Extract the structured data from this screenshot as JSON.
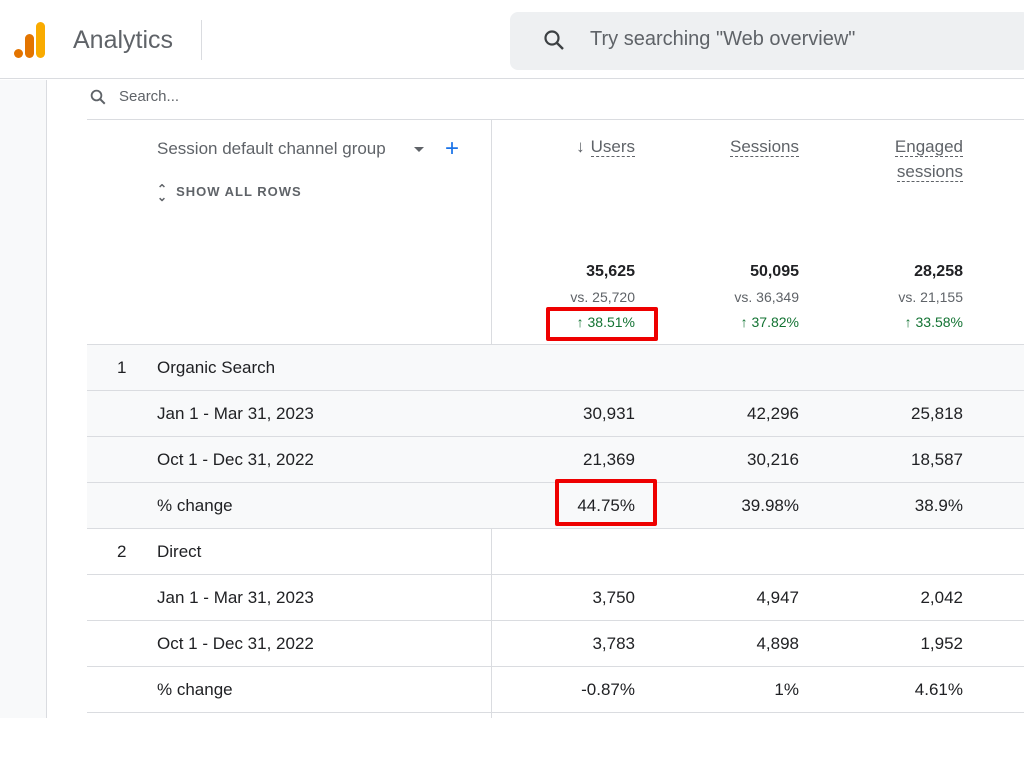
{
  "header": {
    "app_title": "Analytics",
    "search_placeholder": "Try searching \"Web overview\""
  },
  "table": {
    "search_placeholder": "Search...",
    "dimension": "Session default channel group",
    "show_all_rows": "SHOW ALL ROWS",
    "columns": [
      {
        "label": "Users",
        "sort_indicator": "↓",
        "total": "35,625",
        "vs": "vs. 25,720",
        "change": "38.51%"
      },
      {
        "label": "Sessions",
        "total": "50,095",
        "vs": "vs. 36,349",
        "change": "37.82%"
      },
      {
        "label": "Engaged sessions",
        "total": "28,258",
        "vs": "vs. 21,155",
        "change": "33.58%"
      }
    ],
    "rows": [
      {
        "index": "1",
        "label": "Organic Search",
        "values": [
          "",
          "",
          ""
        ],
        "shaded": true
      },
      {
        "index": "",
        "label": "Jan 1 - Mar 31, 2023",
        "values": [
          "30,931",
          "42,296",
          "25,818"
        ],
        "shaded": true
      },
      {
        "index": "",
        "label": "Oct 1 - Dec 31, 2022",
        "values": [
          "21,369",
          "30,216",
          "18,587"
        ],
        "shaded": true
      },
      {
        "index": "",
        "label": "% change",
        "values": [
          "44.75%",
          "39.98%",
          "38.9%"
        ],
        "shaded": true
      },
      {
        "index": "2",
        "label": "Direct",
        "values": [
          "",
          "",
          ""
        ],
        "shaded": false
      },
      {
        "index": "",
        "label": "Jan 1 - Mar 31, 2023",
        "values": [
          "3,750",
          "4,947",
          "2,042"
        ],
        "shaded": false
      },
      {
        "index": "",
        "label": "Oct 1 - Dec 31, 2022",
        "values": [
          "3,783",
          "4,898",
          "1,952"
        ],
        "shaded": false
      },
      {
        "index": "",
        "label": "% change",
        "values": [
          "-0.87%",
          "1%",
          "4.61%"
        ],
        "shaded": false
      }
    ]
  },
  "colors": {
    "accent": "#1a73e8",
    "positive": "#137333",
    "highlight": "#e00000",
    "logo_dark": "#e37400",
    "logo_light": "#f9ab00"
  }
}
